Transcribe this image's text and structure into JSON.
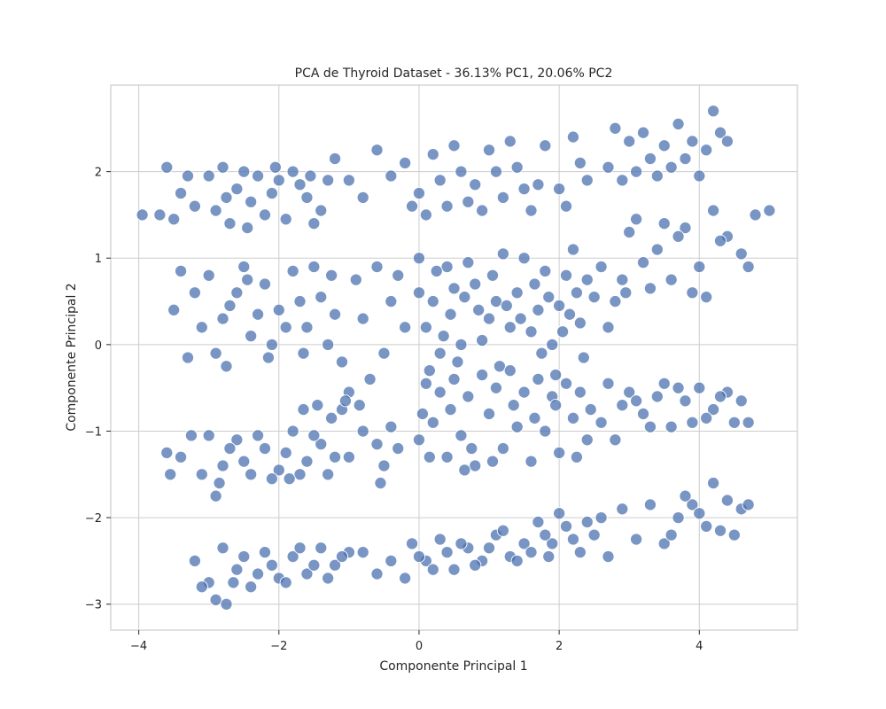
{
  "chart_data": {
    "type": "scatter",
    "title": "PCA de Thyroid Dataset - 36.13% PC1, 20.06% PC2",
    "xlabel": "Componente Principal 1",
    "ylabel": "Componente Principal 2",
    "xlim": [
      -4.4,
      5.4
    ],
    "ylim": [
      -3.3,
      3.0
    ],
    "xticks": [
      -4,
      -2,
      0,
      2,
      4
    ],
    "xtick_labels": [
      "−4",
      "−2",
      "0",
      "2",
      "4"
    ],
    "yticks": [
      -3,
      -2,
      -1,
      0,
      1,
      2
    ],
    "ytick_labels": [
      "−3",
      "−2",
      "−1",
      "0",
      "1",
      "2"
    ],
    "grid": true,
    "point_color": "#4c72b0",
    "points": [
      [
        -3.0,
        1.95
      ],
      [
        -2.8,
        2.05
      ],
      [
        -2.6,
        1.8
      ],
      [
        -2.4,
        1.65
      ],
      [
        -2.2,
        1.5
      ],
      [
        -2.0,
        1.9
      ],
      [
        -1.8,
        2.0
      ],
      [
        -1.6,
        1.7
      ],
      [
        -1.4,
        1.55
      ],
      [
        -1.3,
        1.9
      ],
      [
        -3.2,
        1.6
      ],
      [
        -3.4,
        1.75
      ],
      [
        -3.5,
        1.45
      ],
      [
        -3.7,
        1.5
      ],
      [
        -3.95,
        1.5
      ],
      [
        -3.6,
        2.05
      ],
      [
        -2.7,
        1.4
      ],
      [
        -2.3,
        1.95
      ],
      [
        -1.9,
        1.45
      ],
      [
        -1.2,
        2.15
      ],
      [
        -2.9,
        1.55
      ],
      [
        -2.5,
        2.0
      ],
      [
        -2.1,
        1.75
      ],
      [
        -1.7,
        1.85
      ],
      [
        -1.5,
        1.4
      ],
      [
        -2.75,
        1.7
      ],
      [
        -2.45,
        1.35
      ],
      [
        -2.05,
        2.05
      ],
      [
        -1.55,
        1.95
      ],
      [
        -3.3,
        1.95
      ],
      [
        -0.6,
        2.25
      ],
      [
        -0.4,
        1.95
      ],
      [
        -0.2,
        2.1
      ],
      [
        0.0,
        1.75
      ],
      [
        0.2,
        2.2
      ],
      [
        0.4,
        1.6
      ],
      [
        0.6,
        2.0
      ],
      [
        0.8,
        1.85
      ],
      [
        1.0,
        2.25
      ],
      [
        1.2,
        1.7
      ],
      [
        1.4,
        2.05
      ],
      [
        1.6,
        1.55
      ],
      [
        1.8,
        2.3
      ],
      [
        2.0,
        1.8
      ],
      [
        2.2,
        2.4
      ],
      [
        2.4,
        1.9
      ],
      [
        0.1,
        1.5
      ],
      [
        0.5,
        2.3
      ],
      [
        0.9,
        1.55
      ],
      [
        1.3,
        2.35
      ],
      [
        1.7,
        1.85
      ],
      [
        2.1,
        1.6
      ],
      [
        2.3,
        2.1
      ],
      [
        -0.8,
        1.7
      ],
      [
        -1.0,
        1.9
      ],
      [
        -0.1,
        1.6
      ],
      [
        0.3,
        1.9
      ],
      [
        0.7,
        1.65
      ],
      [
        1.1,
        2.0
      ],
      [
        1.5,
        1.8
      ],
      [
        2.8,
        2.5
      ],
      [
        3.0,
        2.35
      ],
      [
        3.2,
        2.45
      ],
      [
        3.5,
        2.3
      ],
      [
        3.7,
        2.55
      ],
      [
        3.9,
        2.35
      ],
      [
        4.2,
        2.7
      ],
      [
        4.3,
        2.45
      ],
      [
        4.1,
        2.25
      ],
      [
        3.6,
        2.05
      ],
      [
        3.1,
        2.0
      ],
      [
        2.9,
        1.9
      ],
      [
        3.4,
        1.95
      ],
      [
        3.8,
        2.15
      ],
      [
        4.4,
        2.35
      ],
      [
        2.7,
        2.05
      ],
      [
        4.0,
        1.95
      ],
      [
        3.3,
        2.15
      ],
      [
        -3.0,
        0.8
      ],
      [
        -2.8,
        0.3
      ],
      [
        -2.6,
        0.6
      ],
      [
        -2.4,
        0.1
      ],
      [
        -2.2,
        0.7
      ],
      [
        -2.0,
        0.4
      ],
      [
        -1.8,
        0.85
      ],
      [
        -1.6,
        0.2
      ],
      [
        -1.4,
        0.55
      ],
      [
        -1.3,
        0.0
      ],
      [
        -3.1,
        0.2
      ],
      [
        -2.9,
        -0.1
      ],
      [
        -2.5,
        0.9
      ],
      [
        -2.1,
        0.0
      ],
      [
        -1.7,
        0.5
      ],
      [
        -1.5,
        0.9
      ],
      [
        -3.5,
        0.4
      ],
      [
        -3.3,
        -0.15
      ],
      [
        -3.2,
        0.6
      ],
      [
        -2.7,
        0.45
      ],
      [
        -2.3,
        0.35
      ],
      [
        -1.9,
        0.2
      ],
      [
        -1.2,
        0.35
      ],
      [
        -1.1,
        -0.2
      ],
      [
        -2.75,
        -0.25
      ],
      [
        -1.65,
        -0.1
      ],
      [
        -2.45,
        0.75
      ],
      [
        -3.4,
        0.85
      ],
      [
        -1.25,
        0.8
      ],
      [
        -2.15,
        -0.15
      ],
      [
        -1.0,
        -0.55
      ],
      [
        -0.8,
        0.3
      ],
      [
        -0.6,
        0.9
      ],
      [
        -0.4,
        0.5
      ],
      [
        -0.2,
        0.2
      ],
      [
        -0.9,
        0.75
      ],
      [
        -0.5,
        -0.1
      ],
      [
        -0.3,
        0.8
      ],
      [
        -1.1,
        -0.75
      ],
      [
        -0.7,
        -0.4
      ],
      [
        0.0,
        1.0
      ],
      [
        0.2,
        0.5
      ],
      [
        0.4,
        0.9
      ],
      [
        0.6,
        0.0
      ],
      [
        0.8,
        0.7
      ],
      [
        1.0,
        0.3
      ],
      [
        1.2,
        1.05
      ],
      [
        1.4,
        0.6
      ],
      [
        1.6,
        0.15
      ],
      [
        1.8,
        0.85
      ],
      [
        2.0,
        0.45
      ],
      [
        2.2,
        1.1
      ],
      [
        2.4,
        0.75
      ],
      [
        0.1,
        0.2
      ],
      [
        0.3,
        -0.1
      ],
      [
        0.5,
        0.65
      ],
      [
        0.7,
        0.95
      ],
      [
        0.9,
        0.05
      ],
      [
        1.1,
        0.5
      ],
      [
        1.3,
        0.2
      ],
      [
        1.5,
        1.0
      ],
      [
        1.7,
        0.4
      ],
      [
        1.9,
        0.0
      ],
      [
        2.1,
        0.8
      ],
      [
        2.3,
        0.25
      ],
      [
        2.5,
        0.55
      ],
      [
        0.0,
        0.6
      ],
      [
        0.25,
        0.85
      ],
      [
        0.45,
        0.35
      ],
      [
        0.65,
        0.55
      ],
      [
        0.85,
        0.4
      ],
      [
        1.05,
        0.8
      ],
      [
        1.25,
        0.45
      ],
      [
        1.45,
        0.3
      ],
      [
        1.65,
        0.7
      ],
      [
        1.85,
        0.55
      ],
      [
        2.05,
        0.15
      ],
      [
        2.25,
        0.6
      ],
      [
        2.6,
        0.9
      ],
      [
        2.8,
        0.5
      ],
      [
        2.7,
        0.2
      ],
      [
        2.9,
        0.75
      ],
      [
        0.15,
        -0.3
      ],
      [
        0.55,
        -0.2
      ],
      [
        1.95,
        -0.35
      ],
      [
        2.35,
        -0.15
      ],
      [
        1.15,
        -0.25
      ],
      [
        0.35,
        0.1
      ],
      [
        1.75,
        -0.1
      ],
      [
        2.15,
        0.35
      ],
      [
        3.0,
        1.3
      ],
      [
        3.2,
        0.95
      ],
      [
        3.4,
        1.1
      ],
      [
        3.6,
        0.75
      ],
      [
        3.8,
        1.35
      ],
      [
        4.0,
        0.9
      ],
      [
        4.2,
        1.55
      ],
      [
        4.4,
        1.25
      ],
      [
        4.6,
        1.05
      ],
      [
        4.8,
        1.5
      ],
      [
        5.0,
        1.55
      ],
      [
        4.7,
        0.9
      ],
      [
        3.3,
        0.65
      ],
      [
        3.5,
        1.4
      ],
      [
        3.9,
        0.6
      ],
      [
        4.1,
        0.55
      ],
      [
        4.3,
        1.2
      ],
      [
        3.7,
        1.25
      ],
      [
        3.1,
        1.45
      ],
      [
        2.95,
        0.6
      ],
      [
        -3.0,
        -1.05
      ],
      [
        -2.8,
        -1.4
      ],
      [
        -2.6,
        -1.1
      ],
      [
        -2.4,
        -1.5
      ],
      [
        -2.2,
        -1.2
      ],
      [
        -2.0,
        -1.45
      ],
      [
        -1.8,
        -1.0
      ],
      [
        -1.6,
        -1.35
      ],
      [
        -1.4,
        -1.15
      ],
      [
        -1.3,
        -1.5
      ],
      [
        -3.1,
        -1.5
      ],
      [
        -2.9,
        -1.75
      ],
      [
        -2.7,
        -1.2
      ],
      [
        -2.5,
        -1.35
      ],
      [
        -2.3,
        -1.05
      ],
      [
        -2.1,
        -1.55
      ],
      [
        -1.9,
        -1.25
      ],
      [
        -1.7,
        -1.5
      ],
      [
        -1.5,
        -1.05
      ],
      [
        -1.2,
        -1.3
      ],
      [
        -3.6,
        -1.25
      ],
      [
        -3.4,
        -1.3
      ],
      [
        -3.55,
        -1.5
      ],
      [
        -3.25,
        -1.05
      ],
      [
        -2.85,
        -1.6
      ],
      [
        -1.85,
        -1.55
      ],
      [
        -1.25,
        -0.85
      ],
      [
        -1.45,
        -0.7
      ],
      [
        -1.65,
        -0.75
      ],
      [
        -1.05,
        -0.65
      ],
      [
        -0.8,
        -1.0
      ],
      [
        -0.5,
        -1.4
      ],
      [
        -0.6,
        -1.15
      ],
      [
        -0.4,
        -0.95
      ],
      [
        -0.3,
        -1.2
      ],
      [
        -0.55,
        -1.6
      ],
      [
        -1.0,
        -1.3
      ],
      [
        -0.85,
        -0.7
      ],
      [
        0.0,
        -1.1
      ],
      [
        0.2,
        -0.9
      ],
      [
        0.4,
        -1.3
      ],
      [
        0.6,
        -1.05
      ],
      [
        0.8,
        -1.4
      ],
      [
        1.0,
        -0.8
      ],
      [
        1.2,
        -1.2
      ],
      [
        1.4,
        -0.95
      ],
      [
        1.6,
        -1.35
      ],
      [
        1.8,
        -1.0
      ],
      [
        2.0,
        -1.25
      ],
      [
        2.2,
        -0.85
      ],
      [
        2.4,
        -1.1
      ],
      [
        0.1,
        -0.45
      ],
      [
        0.3,
        -0.55
      ],
      [
        0.5,
        -0.4
      ],
      [
        0.7,
        -0.6
      ],
      [
        0.9,
        -0.35
      ],
      [
        1.1,
        -0.5
      ],
      [
        1.3,
        -0.3
      ],
      [
        1.5,
        -0.55
      ],
      [
        1.7,
        -0.4
      ],
      [
        1.9,
        -0.6
      ],
      [
        2.1,
        -0.45
      ],
      [
        2.3,
        -0.55
      ],
      [
        0.15,
        -1.3
      ],
      [
        0.45,
        -0.75
      ],
      [
        0.75,
        -1.2
      ],
      [
        1.05,
        -1.35
      ],
      [
        1.35,
        -0.7
      ],
      [
        1.65,
        -0.85
      ],
      [
        1.95,
        -0.7
      ],
      [
        2.25,
        -1.3
      ],
      [
        0.05,
        -0.8
      ],
      [
        0.65,
        -1.45
      ],
      [
        2.45,
        -0.75
      ],
      [
        2.6,
        -0.9
      ],
      [
        2.8,
        -1.1
      ],
      [
        2.7,
        -0.45
      ],
      [
        2.9,
        -0.7
      ],
      [
        3.0,
        -0.55
      ],
      [
        3.2,
        -0.8
      ],
      [
        3.4,
        -0.6
      ],
      [
        3.6,
        -0.95
      ],
      [
        3.8,
        -0.65
      ],
      [
        4.0,
        -0.5
      ],
      [
        4.2,
        -0.75
      ],
      [
        4.4,
        -0.55
      ],
      [
        4.6,
        -0.65
      ],
      [
        3.5,
        -0.45
      ],
      [
        3.3,
        -0.95
      ],
      [
        3.9,
        -0.9
      ],
      [
        4.1,
        -0.85
      ],
      [
        4.5,
        -0.9
      ],
      [
        4.7,
        -0.9
      ],
      [
        3.1,
        -0.65
      ],
      [
        3.7,
        -0.5
      ],
      [
        4.3,
        -0.6
      ],
      [
        -3.2,
        -2.5
      ],
      [
        -3.0,
        -2.75
      ],
      [
        -2.8,
        -2.35
      ],
      [
        -2.6,
        -2.6
      ],
      [
        -2.4,
        -2.8
      ],
      [
        -2.2,
        -2.4
      ],
      [
        -2.0,
        -2.7
      ],
      [
        -1.8,
        -2.45
      ],
      [
        -1.6,
        -2.65
      ],
      [
        -1.4,
        -2.35
      ],
      [
        -1.2,
        -2.55
      ],
      [
        -1.0,
        -2.4
      ],
      [
        -2.9,
        -2.95
      ],
      [
        -2.75,
        -3.0
      ],
      [
        -2.5,
        -2.45
      ],
      [
        -2.3,
        -2.65
      ],
      [
        -2.1,
        -2.55
      ],
      [
        -1.9,
        -2.75
      ],
      [
        -1.7,
        -2.35
      ],
      [
        -1.5,
        -2.55
      ],
      [
        -3.1,
        -2.8
      ],
      [
        -2.65,
        -2.75
      ],
      [
        -1.3,
        -2.7
      ],
      [
        -1.1,
        -2.45
      ],
      [
        -0.8,
        -2.4
      ],
      [
        -0.6,
        -2.65
      ],
      [
        -0.4,
        -2.5
      ],
      [
        -0.2,
        -2.7
      ],
      [
        -0.1,
        -2.3
      ],
      [
        0.1,
        -2.5
      ],
      [
        0.3,
        -2.25
      ],
      [
        0.5,
        -2.6
      ],
      [
        0.7,
        -2.35
      ],
      [
        0.9,
        -2.5
      ],
      [
        1.1,
        -2.2
      ],
      [
        1.3,
        -2.45
      ],
      [
        1.5,
        -2.3
      ],
      [
        1.7,
        -2.05
      ],
      [
        1.9,
        -2.3
      ],
      [
        2.1,
        -2.1
      ],
      [
        2.3,
        -2.4
      ],
      [
        2.5,
        -2.2
      ],
      [
        2.7,
        -2.45
      ],
      [
        0.0,
        -2.45
      ],
      [
        0.2,
        -2.6
      ],
      [
        0.4,
        -2.4
      ],
      [
        0.6,
        -2.3
      ],
      [
        0.8,
        -2.55
      ],
      [
        1.0,
        -2.35
      ],
      [
        1.2,
        -2.15
      ],
      [
        1.4,
        -2.5
      ],
      [
        1.6,
        -2.4
      ],
      [
        1.8,
        -2.2
      ],
      [
        2.0,
        -1.95
      ],
      [
        2.2,
        -2.25
      ],
      [
        2.4,
        -2.05
      ],
      [
        2.6,
        -2.0
      ],
      [
        1.85,
        -2.45
      ],
      [
        2.9,
        -1.9
      ],
      [
        3.1,
        -2.25
      ],
      [
        3.3,
        -1.85
      ],
      [
        3.5,
        -2.3
      ],
      [
        3.7,
        -2.0
      ],
      [
        3.9,
        -1.85
      ],
      [
        4.1,
        -2.1
      ],
      [
        4.2,
        -1.6
      ],
      [
        4.4,
        -1.8
      ],
      [
        4.6,
        -1.9
      ],
      [
        4.7,
        -1.85
      ],
      [
        3.6,
        -2.2
      ],
      [
        4.0,
        -1.95
      ],
      [
        4.3,
        -2.15
      ],
      [
        4.5,
        -2.2
      ],
      [
        3.8,
        -1.75
      ]
    ]
  }
}
